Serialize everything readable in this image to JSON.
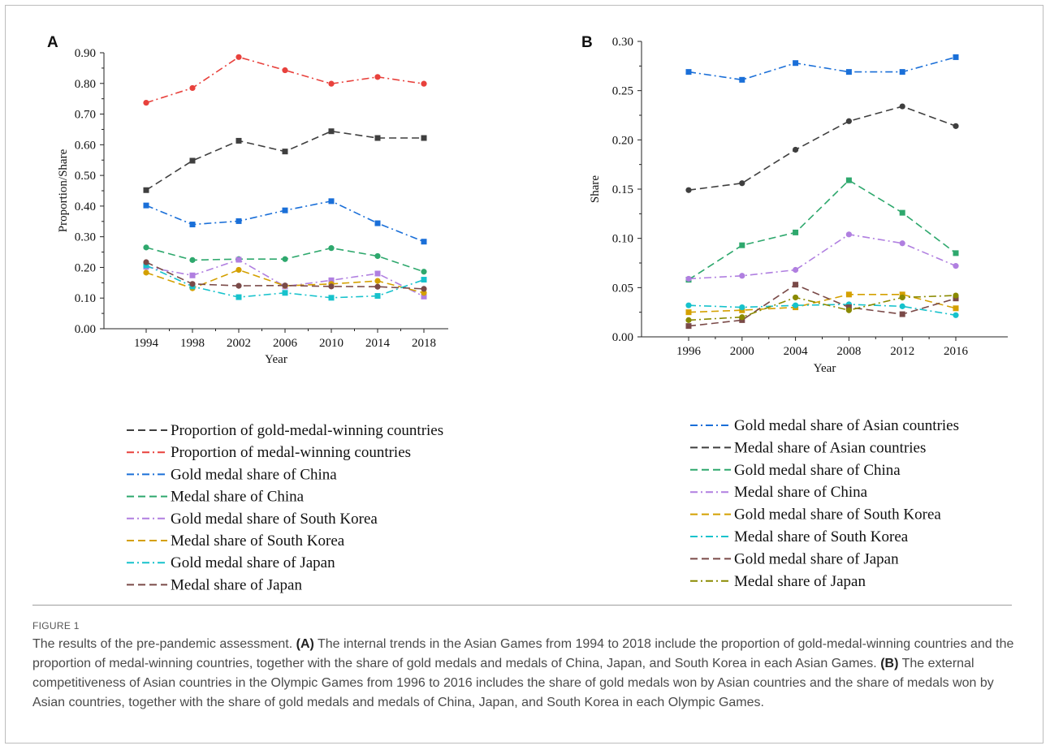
{
  "figure": {
    "label": "FIGURE 1",
    "caption": {
      "intro": "The results of the pre-pandemic assessment.",
      "a_tag": "(A)",
      "a_text": "The internal trends in the Asian Games from 1994 to 2018 include the proportion of gold-medal-winning countries and the proportion of medal-winning countries, together with the share of gold medals and medals of China, Japan, and South Korea in each Asian Games.",
      "b_tag": "(B)",
      "b_text": "The external competitiveness of Asian countries in the Olympic Games from 1996 to 2016 includes the share of gold medals won by Asian countries and the share of medals won by Asian countries, together with the share of gold medals and medals of China, Japan, and South Korea in each Olympic Games."
    }
  },
  "chart_data": [
    {
      "panel": "A",
      "type": "line",
      "xlabel": "Year",
      "ylabel": "Proportion/Share",
      "x": [
        "1994",
        "1998",
        "2002",
        "2006",
        "2010",
        "2014",
        "2018"
      ],
      "ylim": [
        0,
        0.9
      ],
      "yticks": [
        "0.00",
        "0.10",
        "0.20",
        "0.30",
        "0.40",
        "0.50",
        "0.60",
        "0.70",
        "0.80",
        "0.90"
      ],
      "grid": false,
      "legend_position": "below",
      "series": [
        {
          "name": "Proportion of gold-medal-winning countries",
          "color": "#3f3f3f",
          "dash": "dash",
          "marker": "square",
          "values": [
            0.452,
            0.548,
            0.613,
            0.578,
            0.644,
            0.622,
            0.622
          ]
        },
        {
          "name": "Proportion of medal-winning countries",
          "color": "#e8413c",
          "dash": "dashdot",
          "marker": "circle",
          "values": [
            0.737,
            0.785,
            0.886,
            0.843,
            0.799,
            0.821,
            0.799
          ]
        },
        {
          "name": "Gold medal share of China",
          "color": "#1a6fd8",
          "dash": "dashdot",
          "marker": "square",
          "values": [
            0.402,
            0.34,
            0.351,
            0.386,
            0.416,
            0.344,
            0.284
          ]
        },
        {
          "name": "Medal share of China",
          "color": "#2ea86d",
          "dash": "dash",
          "marker": "circle",
          "values": [
            0.265,
            0.224,
            0.227,
            0.227,
            0.263,
            0.237,
            0.186
          ]
        },
        {
          "name": "Gold medal share of South Korea",
          "color": "#b07fe0",
          "dash": "dashdot",
          "marker": "square",
          "values": [
            0.202,
            0.174,
            0.225,
            0.138,
            0.158,
            0.18,
            0.105
          ]
        },
        {
          "name": "Medal share of South Korea",
          "color": "#d4a000",
          "dash": "dash",
          "marker": "circle",
          "values": [
            0.183,
            0.132,
            0.192,
            0.14,
            0.146,
            0.156,
            0.117
          ]
        },
        {
          "name": "Gold medal share of Japan",
          "color": "#17c2cc",
          "dash": "dashdot",
          "marker": "square",
          "values": [
            0.207,
            0.138,
            0.103,
            0.117,
            0.101,
            0.107,
            0.16
          ]
        },
        {
          "name": "Medal share of Japan",
          "color": "#7a4a48",
          "dash": "dash",
          "marker": "circle",
          "values": [
            0.217,
            0.146,
            0.14,
            0.141,
            0.138,
            0.137,
            0.13
          ]
        }
      ]
    },
    {
      "panel": "B",
      "type": "line",
      "xlabel": "Year",
      "ylabel": "Share",
      "x": [
        "1996",
        "2000",
        "2004",
        "2008",
        "2012",
        "2016"
      ],
      "ylim": [
        0,
        0.3
      ],
      "yticks": [
        "0.00",
        "0.05",
        "0.10",
        "0.15",
        "0.20",
        "0.25",
        "0.30"
      ],
      "grid": false,
      "legend_position": "below",
      "series": [
        {
          "name": "Gold medal share of Asian countries",
          "color": "#1a6fd8",
          "dash": "dashdot",
          "marker": "square",
          "values": [
            0.269,
            0.261,
            0.278,
            0.269,
            0.269,
            0.284
          ]
        },
        {
          "name": "Medal share of Asian countries",
          "color": "#3f3f3f",
          "dash": "dash",
          "marker": "circle",
          "values": [
            0.149,
            0.156,
            0.19,
            0.219,
            0.234,
            0.214
          ]
        },
        {
          "name": "Gold medal share of China",
          "color": "#2ea86d",
          "dash": "dash",
          "marker": "square",
          "values": [
            0.058,
            0.093,
            0.106,
            0.159,
            0.126,
            0.085
          ]
        },
        {
          "name": "Medal share of China",
          "color": "#b07fe0",
          "dash": "dashdot",
          "marker": "circle",
          "values": [
            0.059,
            0.062,
            0.068,
            0.104,
            0.095,
            0.072
          ]
        },
        {
          "name": "Gold medal share of South Korea",
          "color": "#d4a000",
          "dash": "dash",
          "marker": "square",
          "values": [
            0.025,
            0.027,
            0.03,
            0.043,
            0.043,
            0.029
          ]
        },
        {
          "name": "Medal share of South Korea",
          "color": "#17c2cc",
          "dash": "dashdot",
          "marker": "circle",
          "values": [
            0.032,
            0.03,
            0.032,
            0.033,
            0.031,
            0.022
          ]
        },
        {
          "name": "Gold medal share of Japan",
          "color": "#7a4a48",
          "dash": "dash",
          "marker": "square",
          "values": [
            0.011,
            0.017,
            0.053,
            0.03,
            0.023,
            0.039
          ]
        },
        {
          "name": "Medal share of Japan",
          "color": "#8a8a00",
          "dash": "dashdot",
          "marker": "circle",
          "values": [
            0.017,
            0.02,
            0.04,
            0.027,
            0.04,
            0.042
          ]
        }
      ]
    }
  ]
}
